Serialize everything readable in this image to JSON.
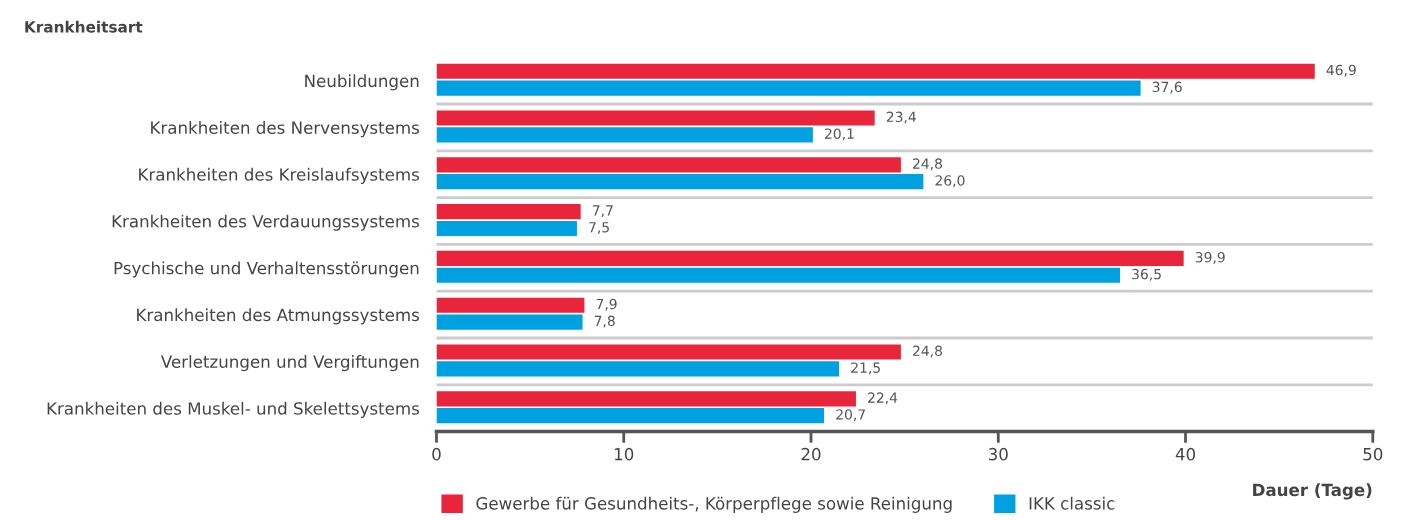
{
  "chart_data": {
    "type": "bar",
    "orientation": "horizontal",
    "ylabel": "Krankheitsart",
    "xlabel": "Dauer (Tage)",
    "categories": [
      "Neubildungen",
      "Krankheiten des Nervensystems",
      "Krankheiten des Kreislaufsystems",
      "Krankheiten des Verdauungssystems",
      "Psychische und Verhaltensstörungen",
      "Krankheiten des Atmungssystems",
      "Verletzungen und Vergiftungen",
      "Krankheiten des Muskel- und Skelettsystems"
    ],
    "series": [
      {
        "name": "Gewerbe für Gesundheits-, Körperpflege sowie Reinigung",
        "color": "#e8253a",
        "values": [
          46.9,
          23.4,
          24.8,
          7.7,
          39.9,
          7.9,
          24.8,
          22.4
        ],
        "value_labels": [
          "46,9",
          "23,4",
          "24,8",
          "7,7",
          "39,9",
          "7,9",
          "24,8",
          "22,4"
        ]
      },
      {
        "name": "IKK classic",
        "color": "#00a1e0",
        "values": [
          37.6,
          20.1,
          26.0,
          7.5,
          36.5,
          7.8,
          21.5,
          20.7
        ],
        "value_labels": [
          "37,6",
          "20,1",
          "26,0",
          "7,5",
          "36,5",
          "7,8",
          "21,5",
          "20,7"
        ]
      }
    ],
    "xlim": [
      0,
      50
    ],
    "xticks": [
      0,
      10,
      20,
      30,
      40,
      50
    ],
    "grid": "y",
    "legend": "bottom"
  }
}
